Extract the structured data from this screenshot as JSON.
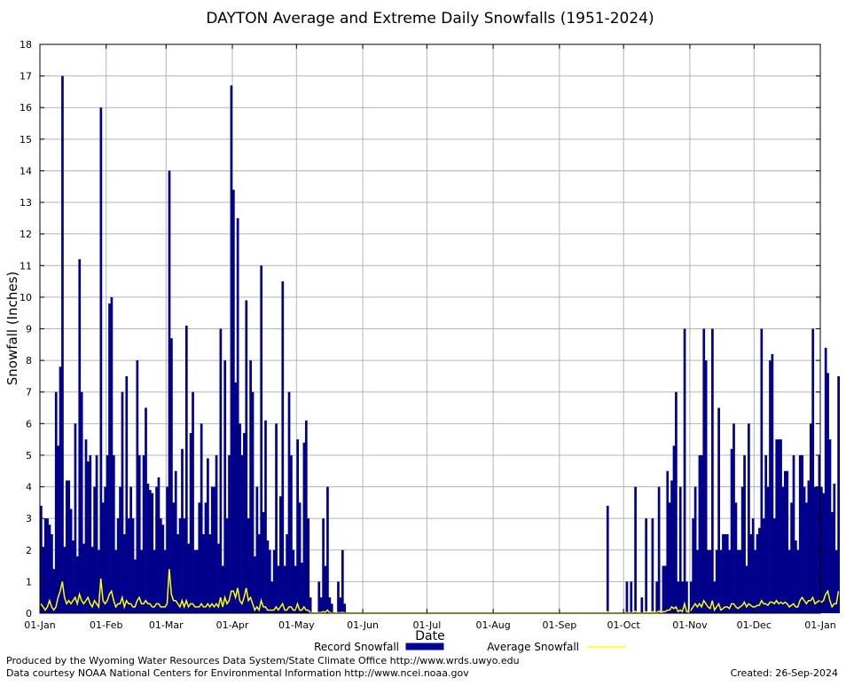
{
  "chart_data": {
    "type": "bar",
    "title": "DAYTON Average and Extreme Daily Snowfalls (1951-2024)",
    "xlabel": "Date",
    "ylabel": "Snowfall (Inches)",
    "ylim": [
      0,
      18
    ],
    "yticks": [
      "0",
      "1",
      "2",
      "3",
      "4",
      "5",
      "6",
      "7",
      "8",
      "9",
      "10",
      "11",
      "12",
      "13",
      "14",
      "15",
      "16",
      "17",
      "18"
    ],
    "x_start": "01-Jan",
    "x_end": "01-Jan",
    "xticks": [
      {
        "label": "01-Jan",
        "day": 0
      },
      {
        "label": "01-Feb",
        "day": 31
      },
      {
        "label": "01-Mar",
        "day": 59
      },
      {
        "label": "01-Apr",
        "day": 90
      },
      {
        "label": "01-May",
        "day": 120
      },
      {
        "label": "01-Jun",
        "day": 151
      },
      {
        "label": "01-Jul",
        "day": 181
      },
      {
        "label": "01-Aug",
        "day": 212
      },
      {
        "label": "01-Sep",
        "day": 243
      },
      {
        "label": "01-Oct",
        "day": 273
      },
      {
        "label": "01-Nov",
        "day": 304
      },
      {
        "label": "01-Dec",
        "day": 334
      },
      {
        "label": "01-Jan",
        "day": 365
      }
    ],
    "grid": true,
    "legend_position": "bottom",
    "series": [
      {
        "name": "Record Snowfall",
        "kind": "bar",
        "color": "#00008B",
        "values": [
          3.4,
          2.1,
          3.0,
          3.0,
          2.8,
          2.5,
          1.4,
          7.0,
          5.3,
          7.8,
          17.0,
          2.1,
          4.2,
          4.2,
          3.3,
          2.3,
          6.0,
          1.8,
          11.2,
          7.0,
          2.2,
          5.5,
          4.8,
          5.0,
          2.1,
          4.0,
          5.0,
          2.0,
          16.0,
          3.5,
          4.0,
          5.0,
          9.8,
          10.0,
          5.0,
          2.0,
          3.0,
          4.0,
          7.0,
          2.5,
          7.5,
          3.0,
          4.0,
          3.0,
          1.7,
          8.0,
          5.0,
          2.0,
          5.0,
          6.5,
          4.1,
          3.9,
          3.8,
          2.0,
          4.0,
          4.3,
          3.0,
          2.8,
          2.0,
          4.0,
          14.0,
          8.7,
          3.5,
          4.5,
          2.5,
          3.0,
          5.2,
          3.0,
          9.1,
          2.2,
          5.7,
          7.0,
          2.0,
          2.0,
          3.5,
          6.0,
          2.5,
          3.5,
          4.9,
          2.5,
          4.0,
          4.0,
          5.0,
          2.2,
          9.0,
          1.5,
          8.0,
          3.0,
          5.0,
          16.7,
          13.4,
          7.3,
          12.5,
          6.0,
          5.0,
          5.7,
          9.9,
          3.0,
          8.0,
          7.0,
          1.8,
          4.0,
          2.5,
          11.0,
          3.2,
          6.1,
          2.3,
          2.0,
          1.0,
          2.0,
          6.0,
          1.5,
          3.7,
          10.5,
          1.5,
          2.5,
          7.0,
          5.0,
          2.0,
          1.5,
          5.5,
          3.5,
          1.6,
          5.4,
          6.1,
          3.0,
          0.5,
          0,
          0,
          0,
          1.0,
          0.5,
          3.0,
          1.5,
          4.0,
          0.5,
          0.3,
          0,
          0,
          1.0,
          0.5,
          2.0,
          0.3,
          0,
          0,
          0,
          0,
          0,
          0,
          0,
          0,
          0,
          0,
          0,
          0,
          0,
          0,
          0,
          0,
          0,
          0,
          0,
          0,
          0,
          0,
          0,
          0,
          0,
          0,
          0,
          0,
          0,
          0,
          0,
          0,
          0,
          0,
          0,
          0,
          0,
          0,
          0,
          0,
          0,
          0,
          0,
          0,
          0,
          0,
          0,
          0,
          0,
          0,
          0,
          0,
          0,
          0,
          0,
          0,
          0,
          0,
          0,
          0,
          0,
          0,
          0,
          0,
          0,
          0,
          0,
          0,
          0,
          0,
          0,
          0,
          0,
          0,
          0,
          0,
          0,
          0,
          0,
          0,
          0,
          0,
          0,
          0,
          0,
          0,
          0,
          0,
          0,
          0,
          0,
          0,
          0,
          0,
          0,
          0,
          0,
          0,
          0,
          0,
          0,
          0,
          0,
          0,
          0,
          0,
          0,
          0,
          0,
          0,
          0,
          0,
          0,
          0,
          0,
          0,
          0,
          0,
          0,
          0,
          0,
          0,
          3.4,
          0,
          0,
          0,
          0,
          0,
          0,
          0,
          0,
          1.0,
          0,
          1.0,
          0,
          4.0,
          0,
          0,
          0.5,
          0,
          3.0,
          0,
          0,
          3.0,
          0,
          1.0,
          4.0,
          0,
          1.5,
          1.5,
          4.5,
          3.5,
          4.2,
          5.3,
          7.0,
          1.0,
          4.0,
          1.0,
          9.0,
          1.0,
          0,
          1.0,
          3.0,
          4.0,
          2.0,
          5.0,
          5.0,
          9.0,
          8.0,
          2.0,
          2.0,
          9.0,
          1.0,
          2.0,
          6.5,
          2.0,
          2.5,
          2.5,
          2.5,
          2.0,
          5.2,
          6.0,
          3.5,
          2.0,
          2.0,
          4.0,
          5.0,
          1.5,
          6.0,
          2.5,
          3.0,
          2.0,
          2.5,
          2.7,
          9.0,
          3.0,
          5.0,
          4.0,
          8.0,
          8.2,
          3.0,
          5.5,
          5.5,
          5.5,
          4.0,
          4.5,
          4.5,
          2.0,
          3.5,
          5.0,
          2.3,
          2.0,
          5.0,
          5.0,
          4.0,
          3.5,
          4.2,
          6.0,
          9.0,
          4.0,
          4.0,
          5.0,
          4.0,
          3.8,
          8.4,
          7.6,
          5.5,
          3.2,
          4.1,
          2.0,
          7.5
        ]
      },
      {
        "name": "Average Snowfall",
        "kind": "line",
        "color": "#FFFF00",
        "values": [
          0.3,
          0.2,
          0.1,
          0.2,
          0.4,
          0.2,
          0.1,
          0.2,
          0.5,
          0.7,
          1.0,
          0.5,
          0.3,
          0.4,
          0.3,
          0.4,
          0.5,
          0.3,
          0.6,
          0.4,
          0.3,
          0.4,
          0.5,
          0.3,
          0.2,
          0.4,
          0.3,
          0.2,
          1.1,
          0.4,
          0.3,
          0.4,
          0.6,
          0.7,
          0.4,
          0.2,
          0.3,
          0.3,
          0.5,
          0.2,
          0.4,
          0.3,
          0.3,
          0.2,
          0.2,
          0.4,
          0.5,
          0.3,
          0.3,
          0.4,
          0.3,
          0.3,
          0.2,
          0.2,
          0.3,
          0.3,
          0.2,
          0.2,
          0.2,
          0.3,
          1.4,
          0.6,
          0.4,
          0.4,
          0.3,
          0.2,
          0.4,
          0.2,
          0.4,
          0.2,
          0.3,
          0.3,
          0.2,
          0.2,
          0.2,
          0.3,
          0.2,
          0.2,
          0.3,
          0.2,
          0.3,
          0.2,
          0.3,
          0.2,
          0.5,
          0.2,
          0.5,
          0.3,
          0.4,
          0.7,
          0.7,
          0.5,
          0.8,
          0.4,
          0.3,
          0.5,
          0.8,
          0.4,
          0.5,
          0.3,
          0.1,
          0.2,
          0.1,
          0.4,
          0.2,
          0.2,
          0.1,
          0.1,
          0.1,
          0.1,
          0.2,
          0.1,
          0.2,
          0.3,
          0.1,
          0.1,
          0.2,
          0.2,
          0.1,
          0.1,
          0.3,
          0.1,
          0.1,
          0.2,
          0.1,
          0.1,
          0.02,
          0,
          0,
          0,
          0.02,
          0.02,
          0.05,
          0.03,
          0.1,
          0.02,
          0.01,
          0,
          0,
          0.02,
          0.01,
          0.03,
          0.01,
          0,
          0,
          0,
          0,
          0,
          0,
          0,
          0,
          0,
          0,
          0,
          0,
          0,
          0,
          0,
          0,
          0,
          0,
          0,
          0,
          0,
          0,
          0,
          0,
          0,
          0,
          0,
          0,
          0,
          0,
          0,
          0,
          0,
          0,
          0,
          0,
          0,
          0,
          0,
          0,
          0,
          0,
          0,
          0,
          0,
          0,
          0,
          0,
          0,
          0,
          0,
          0,
          0,
          0,
          0,
          0,
          0,
          0,
          0,
          0,
          0,
          0,
          0,
          0,
          0,
          0,
          0,
          0,
          0,
          0,
          0,
          0,
          0,
          0,
          0,
          0,
          0,
          0,
          0,
          0,
          0,
          0,
          0,
          0,
          0,
          0,
          0,
          0,
          0,
          0,
          0,
          0,
          0,
          0,
          0,
          0,
          0,
          0,
          0,
          0,
          0,
          0,
          0,
          0,
          0,
          0,
          0,
          0,
          0,
          0,
          0,
          0,
          0,
          0,
          0,
          0,
          0,
          0,
          0,
          0,
          0,
          0,
          0.05,
          0,
          0,
          0,
          0,
          0,
          0,
          0,
          0,
          0.02,
          0,
          0.02,
          0,
          0.06,
          0,
          0,
          0.01,
          0,
          0.05,
          0,
          0,
          0.05,
          0,
          0.02,
          0.07,
          0,
          0.05,
          0.05,
          0.1,
          0.1,
          0.2,
          0.15,
          0.2,
          0.05,
          0.1,
          0.05,
          0.3,
          0.05,
          0.05,
          0.1,
          0.2,
          0.3,
          0.2,
          0.3,
          0.2,
          0.4,
          0.3,
          0.2,
          0.15,
          0.4,
          0.1,
          0.2,
          0.3,
          0.1,
          0.15,
          0.2,
          0.2,
          0.15,
          0.3,
          0.3,
          0.2,
          0.15,
          0.2,
          0.25,
          0.35,
          0.2,
          0.3,
          0.25,
          0.2,
          0.2,
          0.25,
          0.25,
          0.4,
          0.3,
          0.3,
          0.25,
          0.35,
          0.35,
          0.3,
          0.4,
          0.3,
          0.35,
          0.3,
          0.35,
          0.3,
          0.2,
          0.25,
          0.3,
          0.2,
          0.2,
          0.4,
          0.5,
          0.4,
          0.3,
          0.4,
          0.4,
          0.5,
          0.3,
          0.35,
          0.4,
          0.35,
          0.4,
          0.6,
          0.7,
          0.4,
          0.2,
          0.3,
          0.3,
          0.7
        ]
      }
    ]
  },
  "footer": {
    "line1": "Produced by the Wyoming Water Resources Data System/State Climate Office http://www.wrds.uwyo.edu",
    "line2": "Data courtesy NOAA National Centers for Environmental Information http://www.ncei.noaa.gov",
    "created": "Created:  26-Sep-2024"
  }
}
